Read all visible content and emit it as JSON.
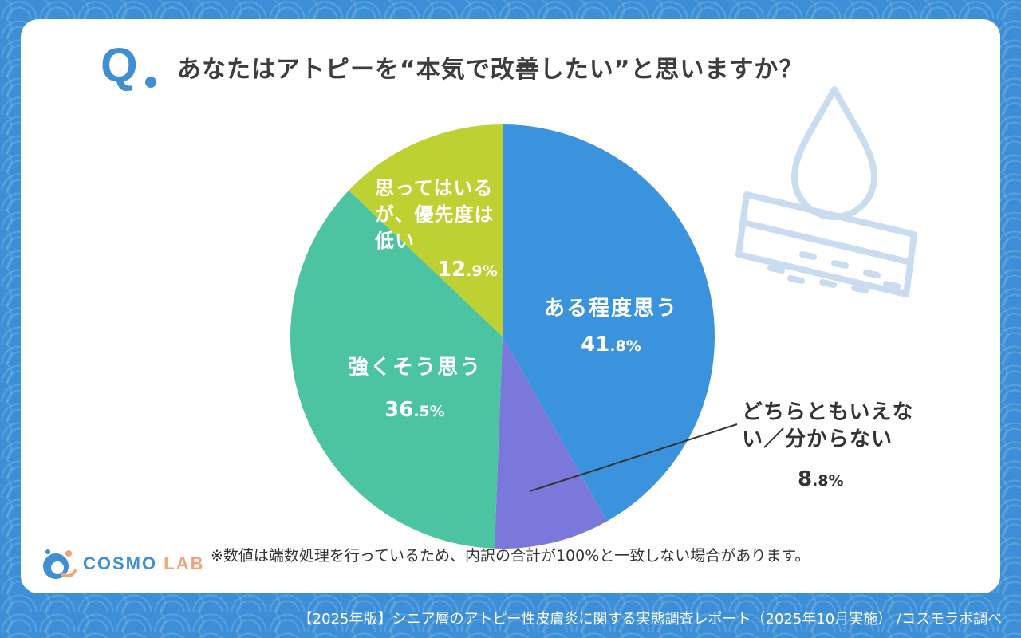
{
  "question": {
    "mark": "Q",
    "title": "あなたはアトピーを“本気で改善したい”と思いますか？"
  },
  "chart_data": {
    "type": "pie",
    "title": "あなたはアトピーを“本気で改善したい”と思いますか？",
    "unit": "%",
    "slices": [
      {
        "label": "ある程度思う",
        "value": 41.8,
        "int": "41",
        "dec": ".8%",
        "color": "#3a93dc"
      },
      {
        "label": "どちらともいえない／分からない",
        "value": 8.8,
        "int": "8",
        "dec": ".8%",
        "color": "#7b78db"
      },
      {
        "label": "強くそう思う",
        "value": 36.5,
        "int": "36",
        "dec": ".5%",
        "color": "#4cc4a2"
      },
      {
        "label": "思ってはいるが、優先度は低い",
        "value": 12.9,
        "int": "12",
        "dec": ".9%",
        "color": "#bdd132"
      }
    ]
  },
  "labels": {
    "s0": [
      "ある程度思う"
    ],
    "s1": [
      "どちらともいえな",
      "い／分からない"
    ],
    "s2": [
      "強くそう思う"
    ],
    "s3": [
      "思ってはいる",
      "が、優先度は",
      "低い"
    ]
  },
  "note": "※数値は端数処理を行っているため、内訳の合計が100%と一致しない場合があります。",
  "logo": {
    "part1": "COSMO",
    "part2": "LAB"
  },
  "footer": "【2025年版】シニア層のアトピー性皮膚炎に関する実態調査レポート（2025年10月実施） /コスモラボ調べ",
  "icons": {
    "decoration": "water-drop-skin-icon",
    "logo": "cosmo-lab-logo-icon"
  }
}
